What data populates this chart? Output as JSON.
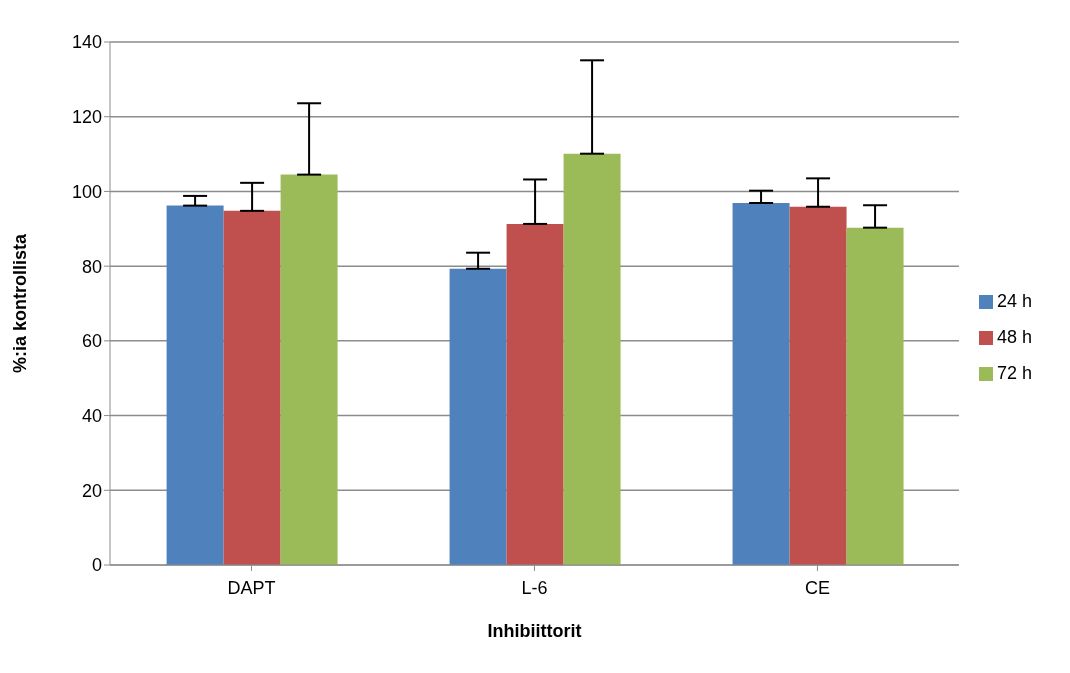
{
  "chart_data": {
    "type": "bar",
    "xlabel": "Inhibiittorit",
    "ylabel": "%:ia kontrollista",
    "categories": [
      "DAPT",
      "L-6",
      "CE"
    ],
    "series": [
      {
        "name": "24 h",
        "color": "#4f81bd",
        "values": [
          96.2,
          79.3,
          96.9
        ],
        "errors": [
          [
            96.2,
            98.8
          ],
          [
            79.3,
            83.6
          ],
          [
            96.9,
            100.2
          ]
        ]
      },
      {
        "name": "48 h",
        "color": "#c0504d",
        "values": [
          94.8,
          91.3,
          95.9
        ],
        "errors": [
          [
            94.8,
            102.3
          ],
          [
            91.3,
            103.2
          ],
          [
            95.9,
            103.5
          ]
        ]
      },
      {
        "name": "72 h",
        "color": "#9bbb59",
        "values": [
          104.5,
          110.1,
          90.3
        ],
        "errors": [
          [
            104.5,
            123.6
          ],
          [
            110.1,
            135.1
          ],
          [
            90.3,
            96.3
          ]
        ]
      }
    ],
    "ylim": [
      0,
      140
    ],
    "yticks": [
      0,
      20,
      40,
      60,
      80,
      100,
      120,
      140
    ],
    "grid": "y",
    "legend": "right"
  }
}
